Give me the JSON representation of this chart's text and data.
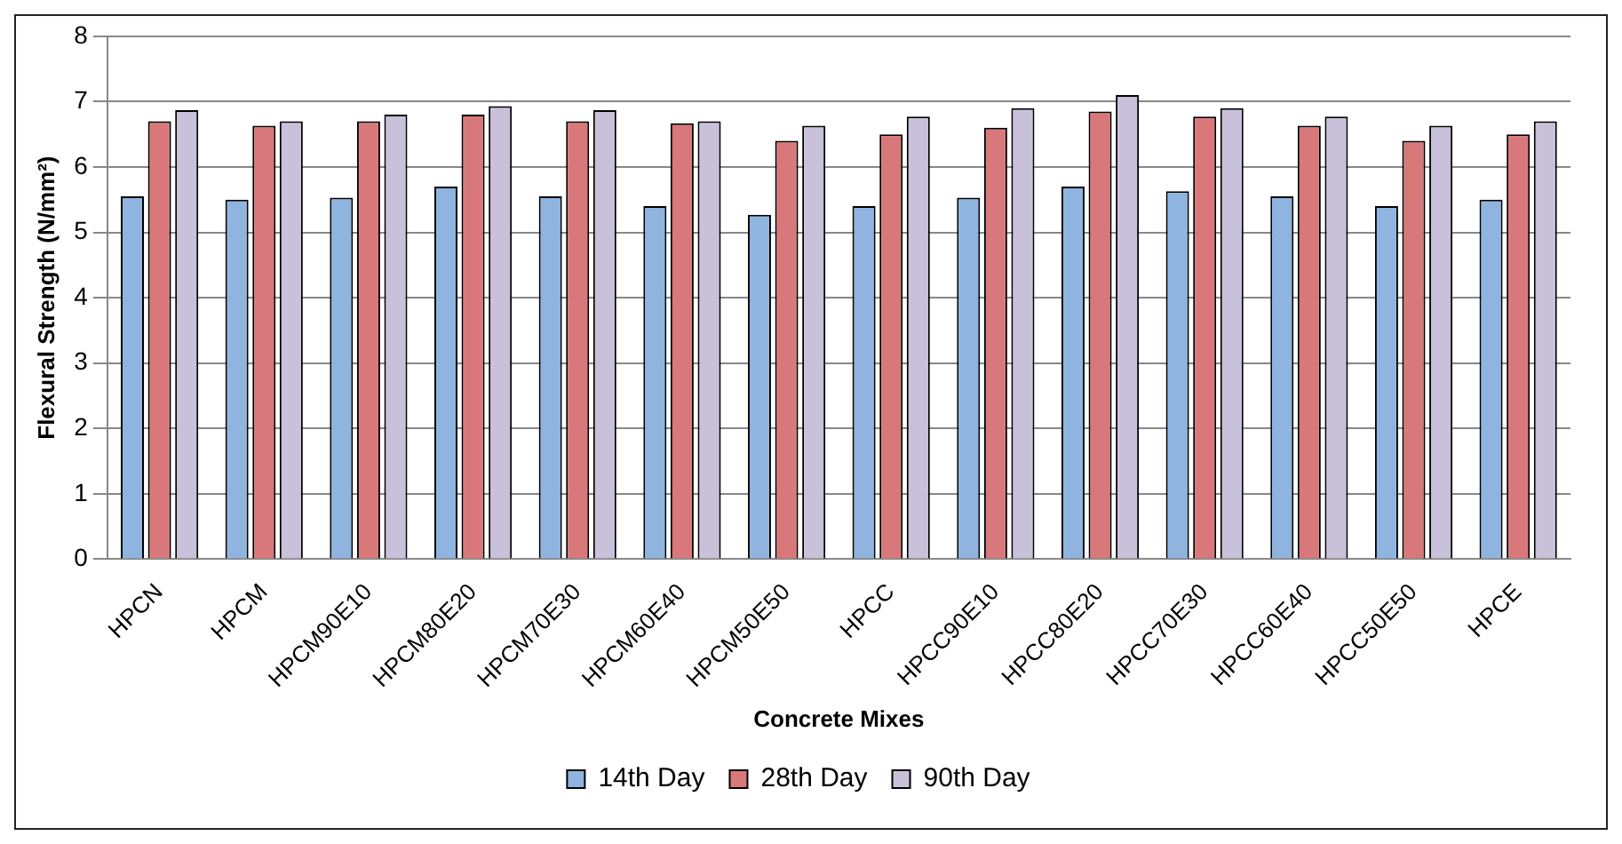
{
  "chart_data": {
    "type": "bar",
    "xlabel": "Concrete Mixes",
    "ylabel": "Flexural Strength (N/mm²)",
    "categories": [
      "HPCN",
      "HPCM",
      "HPCM90E10",
      "HPCM80E20",
      "HPCM70E30",
      "HPCM60E40",
      "HPCM50E50",
      "HPCC",
      "HPCC90E10",
      "HPCC80E20",
      "HPCC70E30",
      "HPCC60E40",
      "HPCC50E50",
      "HPCE"
    ],
    "series": [
      {
        "name": "14th Day",
        "color": "#8fb4e0",
        "values": [
          5.55,
          5.5,
          5.53,
          5.7,
          5.55,
          5.4,
          5.27,
          5.4,
          5.53,
          5.7,
          5.63,
          5.55,
          5.4,
          5.5
        ]
      },
      {
        "name": "28th Day",
        "color": "#d9787a",
        "values": [
          6.7,
          6.63,
          6.7,
          6.8,
          6.7,
          6.67,
          6.4,
          6.5,
          6.6,
          6.85,
          6.77,
          6.63,
          6.4,
          6.5
        ]
      },
      {
        "name": "90th Day",
        "color": "#c9c0da",
        "values": [
          6.87,
          6.7,
          6.8,
          6.93,
          6.87,
          6.7,
          6.63,
          6.77,
          6.9,
          7.1,
          6.9,
          6.77,
          6.63,
          6.7
        ]
      }
    ],
    "ylim": [
      0,
      8
    ],
    "yticks": [
      0,
      1,
      2,
      3,
      4,
      5,
      6,
      7,
      8
    ],
    "grid": "y",
    "legend": "bottom"
  }
}
